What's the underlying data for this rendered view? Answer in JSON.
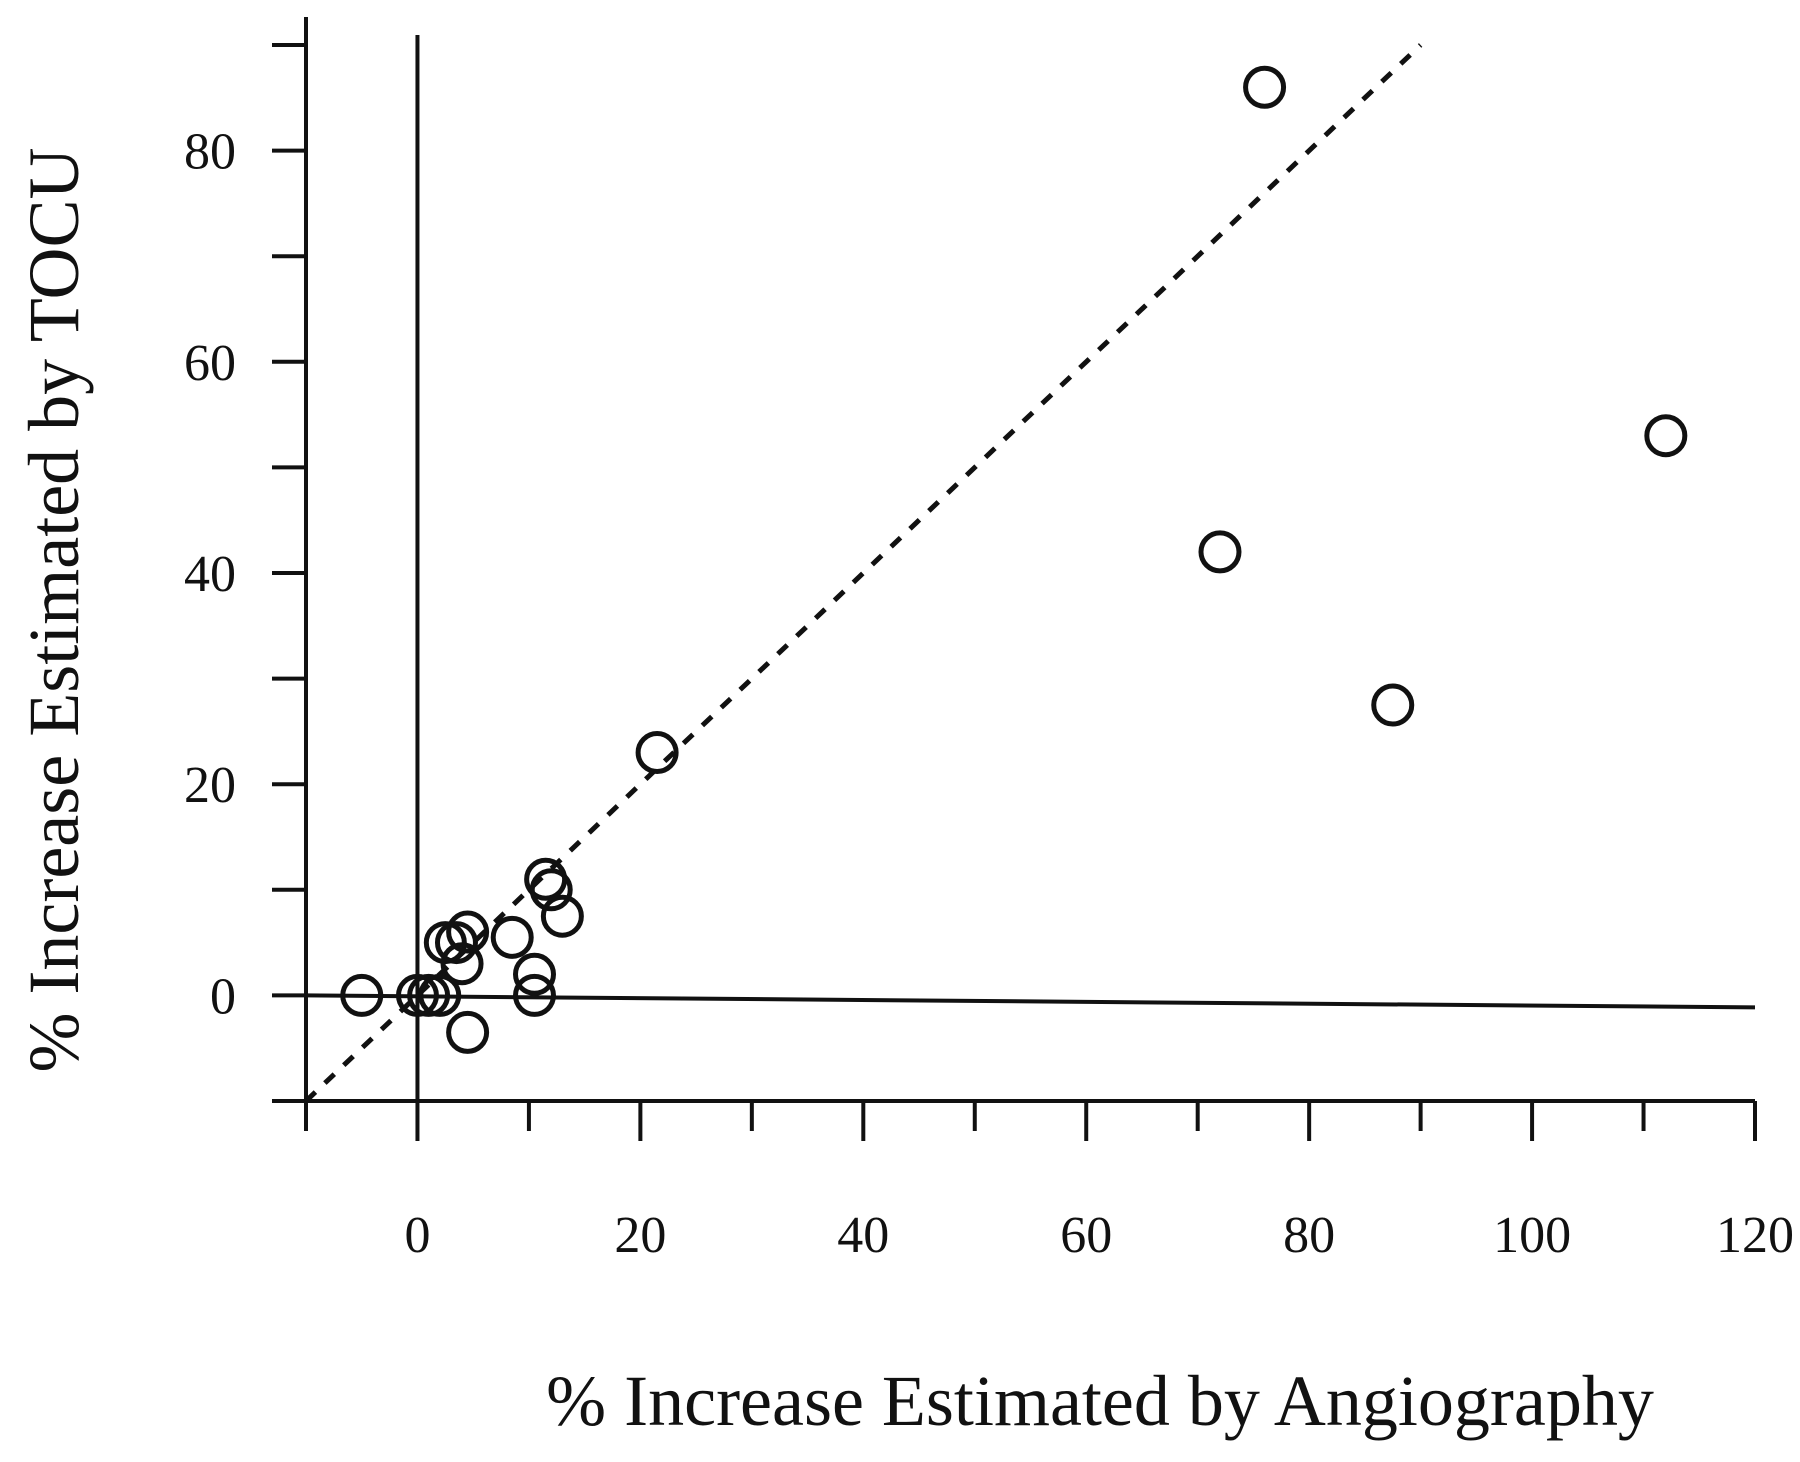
{
  "chart_data": {
    "type": "scatter",
    "xlabel": "% Increase Estimated by Angiography",
    "ylabel": "% Increase Estimated by TOCU",
    "xlim": [
      -10,
      120
    ],
    "ylim": [
      -10,
      90
    ],
    "x_ticks": [
      0,
      20,
      40,
      60,
      80,
      100,
      120
    ],
    "y_ticks": [
      0,
      20,
      40,
      60,
      80
    ],
    "grid": false,
    "marker": "open-circle",
    "color": "#111111",
    "reference_lines": [
      {
        "kind": "vertical",
        "value": 0,
        "style": "solid"
      },
      {
        "kind": "horizontal",
        "value": 0,
        "style": "solid"
      },
      {
        "kind": "identity",
        "from": [
          -10,
          -10
        ],
        "to": [
          90,
          90
        ],
        "style": "dashed"
      }
    ],
    "points": [
      {
        "x": -5,
        "y": 0
      },
      {
        "x": 0,
        "y": 0
      },
      {
        "x": 1,
        "y": 0
      },
      {
        "x": 2,
        "y": 0
      },
      {
        "x": 2.5,
        "y": 5
      },
      {
        "x": 3.5,
        "y": 5
      },
      {
        "x": 4.5,
        "y": 6
      },
      {
        "x": 4,
        "y": 3
      },
      {
        "x": 4.5,
        "y": -3.5
      },
      {
        "x": 8.5,
        "y": 5.5
      },
      {
        "x": 10.5,
        "y": 2
      },
      {
        "x": 10.5,
        "y": 0
      },
      {
        "x": 11.5,
        "y": 11
      },
      {
        "x": 12,
        "y": 10
      },
      {
        "x": 13,
        "y": 7.5
      },
      {
        "x": 21.5,
        "y": 23
      },
      {
        "x": 72,
        "y": 42
      },
      {
        "x": 76,
        "y": 86
      },
      {
        "x": 87.5,
        "y": 27.5
      },
      {
        "x": 112,
        "y": 53
      }
    ]
  }
}
